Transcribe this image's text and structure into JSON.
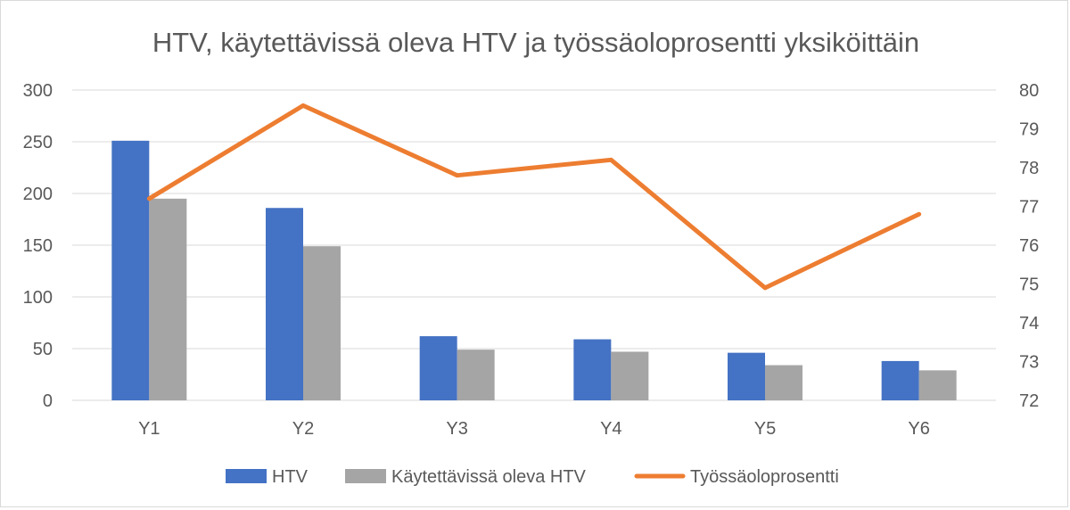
{
  "chart_data": {
    "type": "bar",
    "title": "HTV,  käytettävissä oleva HTV ja työssäoloprosentti yksiköittäin",
    "categories": [
      "Y1",
      "Y2",
      "Y3",
      "Y4",
      "Y5",
      "Y6"
    ],
    "series": [
      {
        "name": "HTV",
        "type": "bar",
        "axis": "left",
        "color": "#4472c4",
        "values": [
          251,
          186,
          62,
          59,
          46,
          38
        ]
      },
      {
        "name": "Käytettävissä oleva HTV",
        "type": "bar",
        "axis": "left",
        "color": "#a5a5a5",
        "values": [
          195,
          149,
          49,
          47,
          34,
          29
        ]
      },
      {
        "name": "Työssäoloprosentti",
        "type": "line",
        "axis": "right",
        "color": "#ed7d31",
        "values": [
          77.2,
          79.6,
          77.8,
          78.2,
          74.9,
          76.8
        ]
      }
    ],
    "y_left": {
      "min": 0,
      "max": 300,
      "ticks": [
        0,
        50,
        100,
        150,
        200,
        250,
        300
      ]
    },
    "y_right": {
      "min": 72,
      "max": 80,
      "ticks": [
        72,
        73,
        74,
        75,
        76,
        77,
        78,
        79,
        80
      ]
    },
    "grid": true,
    "legend_position": "bottom"
  }
}
